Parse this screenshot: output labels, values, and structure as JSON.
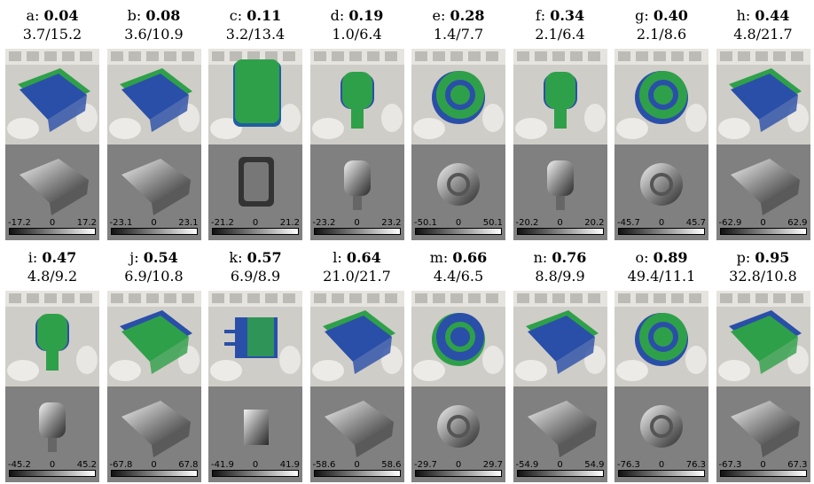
{
  "panels": [
    {
      "letter": "a:",
      "score": "0.04",
      "errs": "3.7/15.2",
      "lo": "-17.2",
      "mid": "0",
      "hi": "17.2",
      "shape": "box",
      "tint": "#2a4fa8"
    },
    {
      "letter": "b:",
      "score": "0.08",
      "errs": "3.6/10.9",
      "lo": "-23.1",
      "mid": "0",
      "hi": "23.1",
      "shape": "box",
      "tint": "#2a4fa8"
    },
    {
      "letter": "c:",
      "score": "0.11",
      "errs": "3.2/13.4",
      "lo": "-21.2",
      "mid": "0",
      "hi": "21.2",
      "shape": "rect",
      "tint": "#2fa04a"
    },
    {
      "letter": "d:",
      "score": "0.19",
      "errs": "1.0/6.4",
      "lo": "-23.2",
      "mid": "0",
      "hi": "23.2",
      "shape": "cyl",
      "tint": "#2fa04a"
    },
    {
      "letter": "e:",
      "score": "0.28",
      "errs": "1.4/7.7",
      "lo": "-50.1",
      "mid": "0",
      "hi": "50.1",
      "shape": "ring",
      "tint": "#2fa04a"
    },
    {
      "letter": "f:",
      "score": "0.34",
      "errs": "2.1/6.4",
      "lo": "-20.2",
      "mid": "0",
      "hi": "20.2",
      "shape": "cyl",
      "tint": "#2fa04a"
    },
    {
      "letter": "g:",
      "score": "0.40",
      "errs": "2.1/8.6",
      "lo": "-45.7",
      "mid": "0",
      "hi": "45.7",
      "shape": "ring",
      "tint": "#2fa04a"
    },
    {
      "letter": "h:",
      "score": "0.44",
      "errs": "4.8/21.7",
      "lo": "-62.9",
      "mid": "0",
      "hi": "62.9",
      "shape": "box",
      "tint": "#2a4fa8"
    },
    {
      "letter": "i:",
      "score": "0.47",
      "errs": "4.8/9.2",
      "lo": "-45.2",
      "mid": "0",
      "hi": "45.2",
      "shape": "cyl",
      "tint": "#2fa04a"
    },
    {
      "letter": "j:",
      "score": "0.54",
      "errs": "6.9/10.8",
      "lo": "-67.8",
      "mid": "0",
      "hi": "67.8",
      "shape": "box",
      "tint": "#2fa04a"
    },
    {
      "letter": "k:",
      "score": "0.57",
      "errs": "6.9/8.9",
      "lo": "-41.9",
      "mid": "0",
      "hi": "41.9",
      "shape": "plug",
      "tint": "#2a4fa8"
    },
    {
      "letter": "l:",
      "score": "0.64",
      "errs": "21.0/21.7",
      "lo": "-58.6",
      "mid": "0",
      "hi": "58.6",
      "shape": "box",
      "tint": "#2a4fa8"
    },
    {
      "letter": "m:",
      "score": "0.66",
      "errs": "4.4/6.5",
      "lo": "-29.7",
      "mid": "0",
      "hi": "29.7",
      "shape": "ring",
      "tint": "#2a4fa8"
    },
    {
      "letter": "n:",
      "score": "0.76",
      "errs": "8.8/9.9",
      "lo": "-54.9",
      "mid": "0",
      "hi": "54.9",
      "shape": "box",
      "tint": "#2a4fa8"
    },
    {
      "letter": "o:",
      "score": "0.89",
      "errs": "49.4/11.1",
      "lo": "-76.3",
      "mid": "0",
      "hi": "76.3",
      "shape": "ring",
      "tint": "#2fa04a"
    },
    {
      "letter": "p:",
      "score": "0.95",
      "errs": "32.8/10.8",
      "lo": "-67.3",
      "mid": "0",
      "hi": "67.3",
      "shape": "box",
      "tint": "#2fa04a"
    }
  ]
}
